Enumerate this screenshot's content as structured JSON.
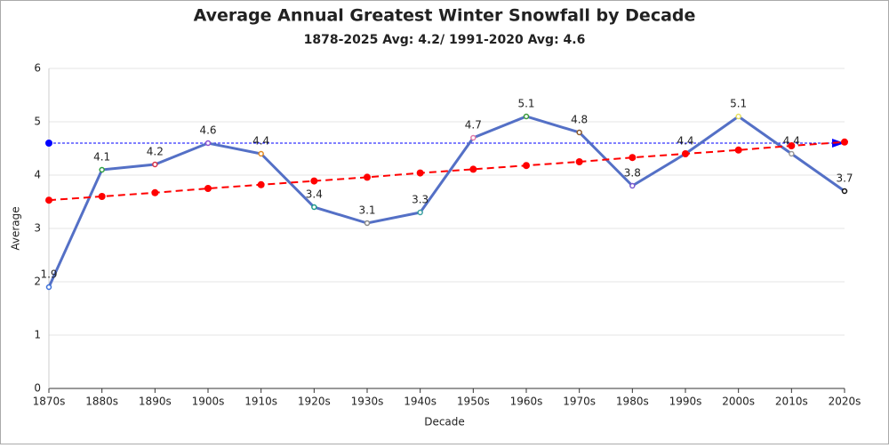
{
  "chart_data": {
    "type": "line",
    "title": "Average Annual Greatest Winter Snowfall by Decade",
    "subtitle": "1878-2025 Avg: 4.2/ 1991-2020 Avg: 4.6",
    "x_label": "Decade",
    "y_label": "Average",
    "categories": [
      "1870s",
      "1880s",
      "1890s",
      "1900s",
      "1910s",
      "1920s",
      "1930s",
      "1940s",
      "1950s",
      "1960s",
      "1970s",
      "1980s",
      "1990s",
      "2000s",
      "2010s",
      "2020s"
    ],
    "series": [
      {
        "color": "#5470c6",
        "values": [
          1.9,
          4.1,
          4.2,
          4.6,
          4.4,
          3.4,
          3.1,
          3.3,
          4.7,
          5.1,
          4.8,
          3.8,
          4.4,
          5.1,
          4.4,
          3.7
        ],
        "marker_colors": [
          "#3b6fd8",
          "#2ea043",
          "#d6334a",
          "#8a4fd0",
          "#e38b22",
          "#1f9a8a",
          "#888888",
          "#3aa0a0",
          "#e07aa8",
          "#3a9a3a",
          "#8b5a2b",
          "#7a5ad0",
          "#9ec7e8",
          "#e8e060",
          "#999999",
          "#111111"
        ],
        "labels": true
      },
      {
        "color": "#ff0000",
        "dashed": true,
        "values": [
          3.53,
          3.6,
          3.67,
          3.75,
          3.82,
          3.89,
          3.96,
          4.04,
          4.11,
          4.18,
          4.25,
          4.33,
          4.4,
          4.47,
          4.55,
          4.62
        ]
      }
    ],
    "reference_line": {
      "value": 4.6,
      "color": "#0000ff"
    },
    "ylim": [
      0,
      6
    ],
    "yticks": [
      0,
      1,
      2,
      3,
      4,
      5,
      6
    ],
    "grid": true
  }
}
